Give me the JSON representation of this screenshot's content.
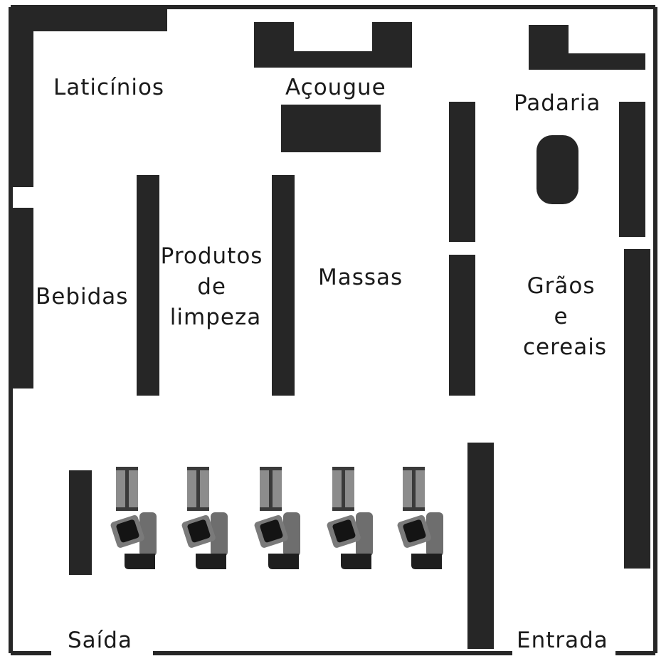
{
  "floor_plan": {
    "sections": {
      "dairy": "Laticínios",
      "butcher": "Açougue",
      "bakery": "Padaria",
      "drinks": "Bebidas",
      "cleaning": [
        "Produtos",
        "de",
        "limpeza"
      ],
      "pasta": "Massas",
      "grains": [
        "Grãos",
        "e",
        "cereais"
      ],
      "exit": "Saída",
      "entrance": "Entrada"
    },
    "checkout_count": 5,
    "colors": {
      "shelf": "#262626",
      "wall": "#262626",
      "checkout_belt": "#8c8c8c",
      "cashier_seat": "#6e6e6e",
      "text": "#1a1a1a"
    }
  }
}
